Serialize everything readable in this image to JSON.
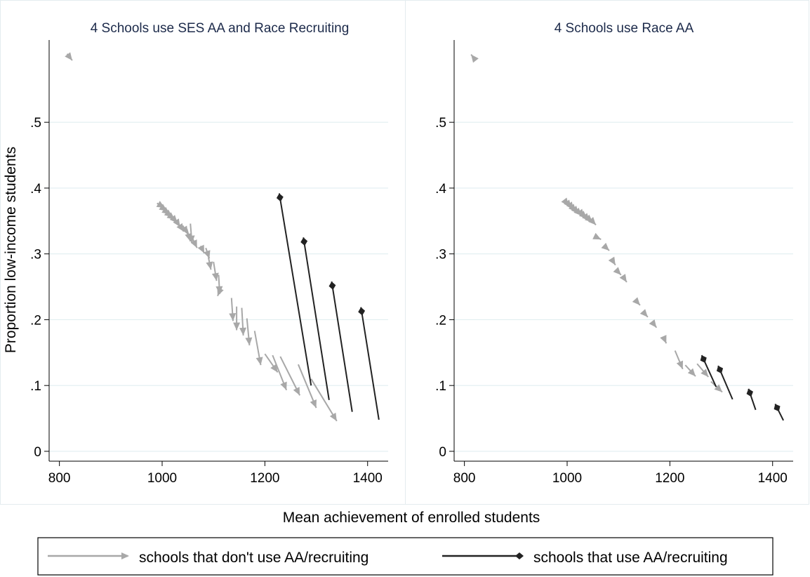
{
  "chart_data": [
    {
      "type": "scatter",
      "title": "4 Schools use SES AA and Race Recruiting",
      "x_range": [
        780,
        1440
      ],
      "y_range": [
        -0.015,
        0.625
      ],
      "xticks": [
        800,
        1000,
        1200,
        1400
      ],
      "yticks": [
        0,
        0.1,
        0.2,
        0.3,
        0.4,
        0.5
      ],
      "ytick_labels": [
        "0",
        ".1",
        ".2",
        ".3",
        ".4",
        ".5"
      ],
      "series": [
        {
          "name": "schools that don't use AA/recruiting",
          "color": "#a8a8a8",
          "marker": "arrow",
          "segments": [
            [
              815,
              0.604,
              825,
              0.594
            ],
            [
              990,
              0.377,
              1005,
              0.37
            ],
            [
              995,
              0.373,
              1010,
              0.365
            ],
            [
              1000,
              0.369,
              1015,
              0.36
            ],
            [
              1005,
              0.365,
              1020,
              0.356
            ],
            [
              1010,
              0.361,
              1025,
              0.352
            ],
            [
              1018,
              0.357,
              1030,
              0.347
            ],
            [
              1025,
              0.353,
              1035,
              0.341
            ],
            [
              1030,
              0.348,
              1042,
              0.334
            ],
            [
              1040,
              0.343,
              1050,
              0.33
            ],
            [
              1048,
              0.338,
              1055,
              0.319
            ],
            [
              1055,
              0.346,
              1058,
              0.316
            ],
            [
              1060,
              0.322,
              1068,
              0.309
            ],
            [
              1075,
              0.312,
              1082,
              0.301
            ],
            [
              1085,
              0.309,
              1092,
              0.293
            ],
            [
              1090,
              0.295,
              1095,
              0.276
            ],
            [
              1100,
              0.288,
              1106,
              0.259
            ],
            [
              1110,
              0.268,
              1112,
              0.239
            ],
            [
              1115,
              0.25,
              1108,
              0.236
            ],
            [
              1135,
              0.233,
              1138,
              0.198
            ],
            [
              1145,
              0.22,
              1145,
              0.184
            ],
            [
              1155,
              0.218,
              1158,
              0.176
            ],
            [
              1165,
              0.202,
              1170,
              0.161
            ],
            [
              1180,
              0.183,
              1192,
              0.131
            ],
            [
              1200,
              0.148,
              1225,
              0.12
            ],
            [
              1215,
              0.146,
              1242,
              0.093
            ],
            [
              1230,
              0.144,
              1268,
              0.085
            ],
            [
              1265,
              0.132,
              1300,
              0.066
            ],
            [
              1290,
              0.11,
              1340,
              0.046
            ]
          ]
        },
        {
          "name": "schools that use AA/recruiting",
          "color": "#222222",
          "marker": "diamond",
          "segments": [
            [
              1290,
              0.1,
              1228,
              0.392
            ],
            [
              1325,
              0.078,
              1275,
              0.325
            ],
            [
              1370,
              0.06,
              1330,
              0.258
            ],
            [
              1422,
              0.048,
              1387,
              0.219
            ]
          ]
        }
      ]
    },
    {
      "type": "scatter",
      "title": "4 Schools use Race AA",
      "x_range": [
        780,
        1440
      ],
      "y_range": [
        -0.015,
        0.625
      ],
      "xticks": [
        800,
        1000,
        1200,
        1400
      ],
      "yticks": [
        0,
        0.1,
        0.2,
        0.3,
        0.4,
        0.5
      ],
      "ytick_labels": [
        "0",
        ".1",
        ".2",
        ".3",
        ".4",
        ".5"
      ],
      "series": [
        {
          "name": "schools that don't use AA/recruiting",
          "color": "#a8a8a8",
          "marker": "arrow",
          "segments": [
            [
              817,
              0.599,
              813,
              0.603
            ],
            [
              998,
              0.378,
              1003,
              0.373
            ],
            [
              1003,
              0.375,
              1008,
              0.37
            ],
            [
              1008,
              0.372,
              1013,
              0.367
            ],
            [
              1012,
              0.369,
              1018,
              0.364
            ],
            [
              1017,
              0.366,
              1023,
              0.361
            ],
            [
              1022,
              0.363,
              1028,
              0.358
            ],
            [
              1028,
              0.361,
              1033,
              0.356
            ],
            [
              1033,
              0.358,
              1039,
              0.354
            ],
            [
              1038,
              0.355,
              1044,
              0.35
            ],
            [
              1044,
              0.352,
              1050,
              0.348
            ],
            [
              1050,
              0.349,
              1056,
              0.344
            ],
            [
              1058,
              0.325,
              1066,
              0.322
            ],
            [
              1075,
              0.31,
              1082,
              0.305
            ],
            [
              1090,
              0.288,
              1094,
              0.283
            ],
            [
              1100,
              0.272,
              1105,
              0.268
            ],
            [
              1110,
              0.264,
              1116,
              0.257
            ],
            [
              1135,
              0.228,
              1142,
              0.222
            ],
            [
              1150,
              0.21,
              1157,
              0.204
            ],
            [
              1167,
              0.195,
              1174,
              0.188
            ],
            [
              1188,
              0.173,
              1193,
              0.164
            ],
            [
              1210,
              0.153,
              1225,
              0.125
            ],
            [
              1230,
              0.131,
              1250,
              0.114
            ],
            [
              1253,
              0.133,
              1275,
              0.113
            ],
            [
              1280,
              0.106,
              1302,
              0.09
            ]
          ]
        },
        {
          "name": "schools that use AA/recruiting",
          "color": "#222222",
          "marker": "diamond",
          "segments": [
            [
              1290,
              0.098,
              1262,
              0.146
            ],
            [
              1322,
              0.079,
              1294,
              0.13
            ],
            [
              1367,
              0.063,
              1353,
              0.095
            ],
            [
              1421,
              0.047,
              1405,
              0.072
            ]
          ]
        }
      ]
    }
  ],
  "shared": {
    "xlabel": "Mean achievement of enrolled students",
    "ylabel": "Proportion low-income students"
  },
  "legend": {
    "placement": "bottom",
    "items": [
      {
        "label": "schools that don't use AA/recruiting",
        "color": "#a8a8a8",
        "marker": "arrow"
      },
      {
        "label": "schools that use AA/recruiting",
        "color": "#222222",
        "marker": "diamond"
      }
    ]
  }
}
